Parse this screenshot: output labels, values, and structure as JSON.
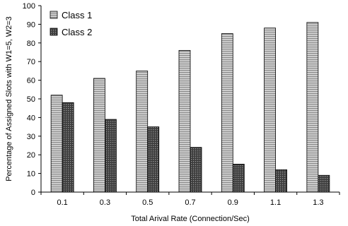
{
  "chart_data": {
    "type": "bar",
    "title": "",
    "xlabel": "Total Arival Rate (Connection/Sec)",
    "ylabel": "Percentage of Assigned Slots with W1=5, W2=3",
    "ylim": [
      0,
      100
    ],
    "yticks": [
      0,
      10,
      20,
      30,
      40,
      50,
      60,
      70,
      80,
      90,
      100
    ],
    "categories": [
      "0.1",
      "0.3",
      "0.5",
      "0.7",
      "0.9",
      "1.1",
      "1.3"
    ],
    "series": [
      {
        "name": "Class 1",
        "values": [
          52,
          61,
          65,
          76,
          85,
          88,
          91
        ],
        "color": "#b5b5b5",
        "pattern": "horizontal-lines"
      },
      {
        "name": "Class 2",
        "values": [
          48,
          39,
          35,
          24,
          15,
          12,
          9
        ],
        "color": "#5a5a5a",
        "pattern": "dark-grid"
      }
    ],
    "grid": false,
    "legend_position": "top-left"
  }
}
